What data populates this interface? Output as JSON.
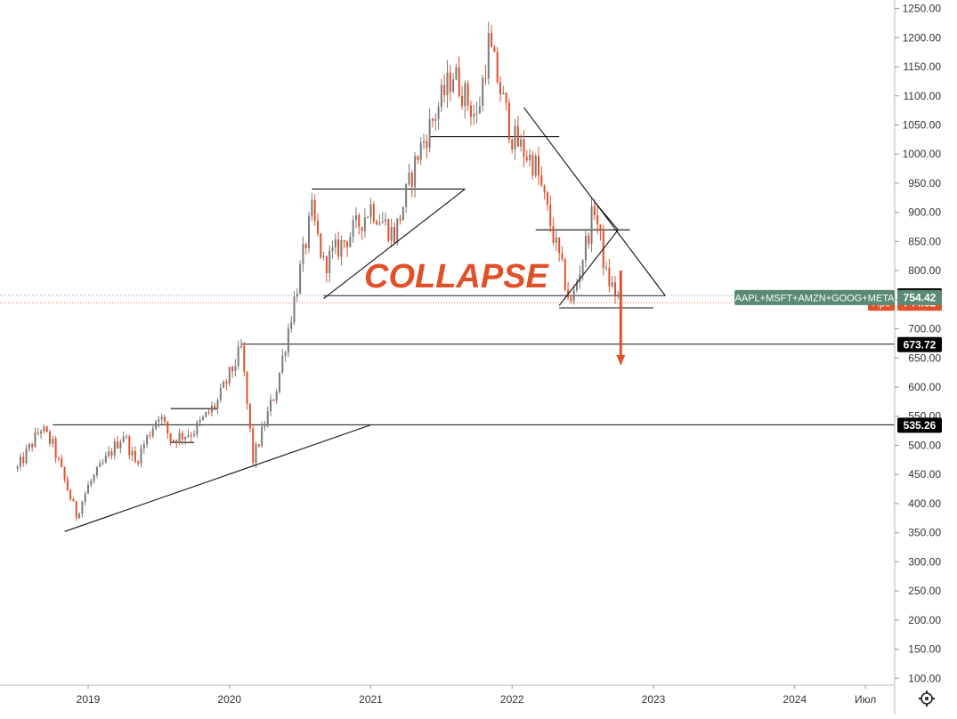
{
  "chart_data": {
    "type": "candlestick",
    "title": "",
    "annotation": "COLLAPSE",
    "x_ticks": [
      "2019",
      "2020",
      "2021",
      "2022",
      "2023",
      "2024",
      "Июл"
    ],
    "x_range": [
      "2018-07",
      "2024-08"
    ],
    "y_ticks": [
      "100.00",
      "150.00",
      "200.00",
      "250.00",
      "300.00",
      "350.00",
      "400.00",
      "450.00",
      "500.00",
      "550.00",
      "600.00",
      "650.00",
      "700.00",
      "750.00",
      "800.00",
      "850.00",
      "900.00",
      "950.00",
      "1000.00",
      "1050.00",
      "1100.00",
      "1150.00",
      "1200.00",
      "1250.00"
    ],
    "ylim": [
      88,
      1255
    ],
    "grid": false,
    "colors": {
      "up": "#7a7a7a",
      "down": "#e0512a",
      "annotation": "#e0512a",
      "series_label_bg": "#5b8a72",
      "pre_label_bg": "#e0512a",
      "level_label_bg": "#000000"
    },
    "series": [
      {
        "name": "AAPL+MSFT+AMZN+GOOG+META",
        "last_value": "754.42",
        "price_path": [
          [
            "2018-07",
            460
          ],
          [
            "2018-09",
            530
          ],
          [
            "2018-10",
            500
          ],
          [
            "2018-12",
            380
          ],
          [
            "2019-01",
            430
          ],
          [
            "2019-04",
            520
          ],
          [
            "2019-05",
            470
          ],
          [
            "2019-07",
            555
          ],
          [
            "2019-08",
            510
          ],
          [
            "2019-10",
            525
          ],
          [
            "2019-12",
            575
          ],
          [
            "2020-02",
            665
          ],
          [
            "2020-03",
            475
          ],
          [
            "2020-05",
            600
          ],
          [
            "2020-08",
            900
          ],
          [
            "2020-09",
            810
          ],
          [
            "2020-12",
            880
          ],
          [
            "2021-01",
            910
          ],
          [
            "2021-03",
            860
          ],
          [
            "2021-05",
            1000
          ],
          [
            "2021-08",
            1140
          ],
          [
            "2021-10",
            1060
          ],
          [
            "2021-11",
            1190
          ],
          [
            "2022-01",
            1030
          ],
          [
            "2022-03",
            980
          ],
          [
            "2022-05",
            820
          ],
          [
            "2022-06",
            740
          ],
          [
            "2022-08",
            910
          ],
          [
            "2022-09",
            790
          ],
          [
            "2022-10",
            754
          ]
        ]
      }
    ],
    "price_labels": [
      {
        "label": "757.37",
        "value": 757.37
      },
      {
        "label": "744.82",
        "prefix": "Пре",
        "value": 744.82
      },
      {
        "label": "673.72",
        "value": 673.72
      },
      {
        "label": "535.26",
        "value": 535.26
      }
    ],
    "horizontal_levels": [
      {
        "value": 673.72,
        "from": "2020-02",
        "extend": true
      },
      {
        "value": 535.26,
        "from": "2018-10",
        "extend": true
      },
      {
        "value": 757,
        "from": "2020-09",
        "to": "2023-02"
      },
      {
        "value": 940,
        "from": "2020-08",
        "to": "2021-09"
      },
      {
        "value": 1030,
        "from": "2021-06",
        "to": "2022-05"
      },
      {
        "value": 870,
        "from": "2022-03",
        "to": "2022-11"
      },
      {
        "value": 736,
        "from": "2022-05",
        "to": "2023-01"
      },
      {
        "value": 563,
        "from": "2019-08",
        "to": "2019-12"
      },
      {
        "value": 505,
        "from": "2019-08",
        "to": "2019-10"
      }
    ],
    "trend_lines": [
      {
        "from": [
          "2018-11",
          352
        ],
        "to": [
          "2021-01",
          535
        ]
      },
      {
        "from": [
          "2020-09",
          752
        ],
        "to": [
          "2021-09",
          940
        ]
      },
      {
        "from": [
          "2022-02",
          1080
        ],
        "to": [
          "2023-02",
          757
        ]
      },
      {
        "from": [
          "2022-05",
          740
        ],
        "to": [
          "2022-10",
          870
        ]
      },
      {
        "from": [
          "2022-08",
          918
        ],
        "to": [
          "2022-10",
          870
        ]
      }
    ],
    "forecast_arrow": {
      "from": [
        "2022-10",
        800
      ],
      "to": [
        "2022-10",
        640
      ]
    }
  }
}
